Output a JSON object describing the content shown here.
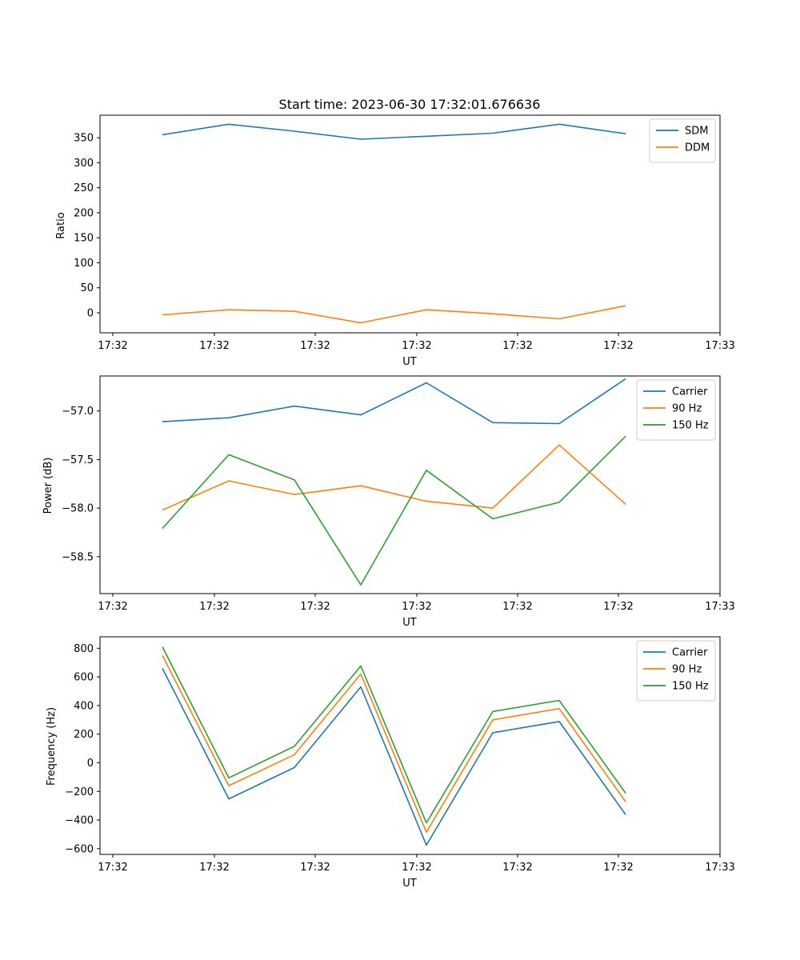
{
  "chart_data": [
    {
      "type": "line",
      "title": "Start time: 2023-06-30 17:32:01.676636",
      "xlabel": "UT",
      "ylabel": "Ratio",
      "x_tick_labels": [
        "17:32",
        "17:32",
        "17:32",
        "17:32",
        "17:32",
        "17:32",
        "17:33"
      ],
      "y_ticks": [
        0,
        50,
        100,
        150,
        200,
        250,
        300,
        350
      ],
      "y_tick_labels": [
        "0",
        "50",
        "100",
        "150",
        "200",
        "250",
        "300",
        "350"
      ],
      "ylim": [
        -40,
        395
      ],
      "legend_position": "top-right",
      "series": [
        {
          "name": "SDM",
          "color": "#1f77b4",
          "values": [
            356,
            377,
            363,
            347,
            353,
            359,
            377,
            358
          ]
        },
        {
          "name": "DDM",
          "color": "#ff7f0e",
          "values": [
            -4,
            6,
            3,
            -20,
            6,
            -2,
            -12,
            14
          ]
        }
      ]
    },
    {
      "type": "line",
      "title": "",
      "xlabel": "UT",
      "ylabel": "Power (dB)",
      "x_tick_labels": [
        "17:32",
        "17:32",
        "17:32",
        "17:32",
        "17:32",
        "17:32",
        "17:33"
      ],
      "y_ticks": [
        -58.5,
        -58.0,
        -57.5,
        -57.0
      ],
      "y_tick_labels": [
        "−58.5",
        "−58.0",
        "−57.5",
        "−57.0"
      ],
      "ylim": [
        -58.88,
        -56.64
      ],
      "legend_position": "top-right",
      "series": [
        {
          "name": "Carrier",
          "color": "#1f77b4",
          "values": [
            -57.11,
            -57.07,
            -56.95,
            -57.04,
            -56.71,
            -57.12,
            -57.13,
            -56.67
          ]
        },
        {
          "name": "90 Hz",
          "color": "#ff7f0e",
          "values": [
            -58.02,
            -57.72,
            -57.86,
            -57.77,
            -57.93,
            -58.0,
            -57.35,
            -57.96
          ]
        },
        {
          "name": "150 Hz",
          "color": "#2ca02c",
          "values": [
            -58.21,
            -57.45,
            -57.71,
            -58.79,
            -57.61,
            -58.11,
            -57.94,
            -57.26
          ]
        }
      ]
    },
    {
      "type": "line",
      "title": "",
      "xlabel": "UT",
      "ylabel": "Frequency (Hz)",
      "x_tick_labels": [
        "17:32",
        "17:32",
        "17:32",
        "17:32",
        "17:32",
        "17:32",
        "17:33"
      ],
      "y_ticks": [
        -600,
        -400,
        -200,
        0,
        200,
        400,
        600,
        800
      ],
      "y_tick_labels": [
        "−600",
        "−400",
        "−200",
        "0",
        "200",
        "400",
        "600",
        "800"
      ],
      "ylim": [
        -640,
        880
      ],
      "legend_position": "top-right",
      "series": [
        {
          "name": "Carrier",
          "color": "#1f77b4",
          "values": [
            660,
            -252,
            -33,
            530,
            -575,
            210,
            288,
            -362
          ]
        },
        {
          "name": "90 Hz",
          "color": "#ff7f0e",
          "values": [
            750,
            -160,
            57,
            620,
            -485,
            300,
            378,
            -272
          ]
        },
        {
          "name": "150 Hz",
          "color": "#2ca02c",
          "values": [
            810,
            -105,
            115,
            676,
            -420,
            358,
            436,
            -212
          ]
        }
      ]
    }
  ]
}
